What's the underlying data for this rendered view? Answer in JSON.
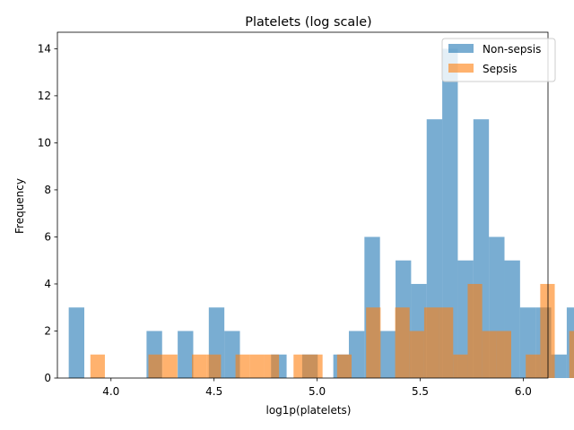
{
  "chart_data": {
    "type": "bar",
    "title": "Platelets (log scale)",
    "xlabel": "log1p(platelets)",
    "ylabel": "Frequency",
    "xlim": [
      3.74,
      6.12
    ],
    "ylim": [
      0,
      14.7
    ],
    "x_ticks": [
      4.0,
      4.5,
      5.0,
      5.5,
      6.0
    ],
    "x_tick_labels": [
      "4.0",
      "4.5",
      "5.0",
      "5.5",
      "6.0"
    ],
    "y_ticks": [
      0,
      2,
      4,
      6,
      8,
      10,
      12,
      14
    ],
    "y_tick_labels": [
      "0",
      "2",
      "4",
      "6",
      "8",
      "10",
      "12",
      "14"
    ],
    "grid": false,
    "legend_position": "top-right",
    "series": [
      {
        "name": "Non-sepsis",
        "color": "#1f77b4",
        "opacity": 0.6,
        "bin_start": 3.795,
        "bin_width": 0.0755,
        "values": [
          3,
          0,
          0,
          0,
          0,
          2,
          0,
          2,
          0,
          3,
          2,
          0,
          0,
          1,
          0,
          1,
          0,
          1,
          2,
          6,
          2,
          5,
          4,
          11,
          14,
          5,
          11,
          6,
          5,
          3,
          3,
          1,
          3
        ]
      },
      {
        "name": "Sepsis",
        "color": "#ff7f0e",
        "opacity": 0.6,
        "bin_start": 3.9,
        "bin_width": 0.0704,
        "values": [
          1,
          0,
          0,
          0,
          1,
          1,
          0,
          1,
          1,
          0,
          1,
          1,
          1,
          0,
          1,
          1,
          0,
          1,
          0,
          3,
          0,
          3,
          2,
          3,
          3,
          1,
          4,
          2,
          2,
          0,
          1,
          4,
          0,
          2
        ]
      }
    ]
  }
}
